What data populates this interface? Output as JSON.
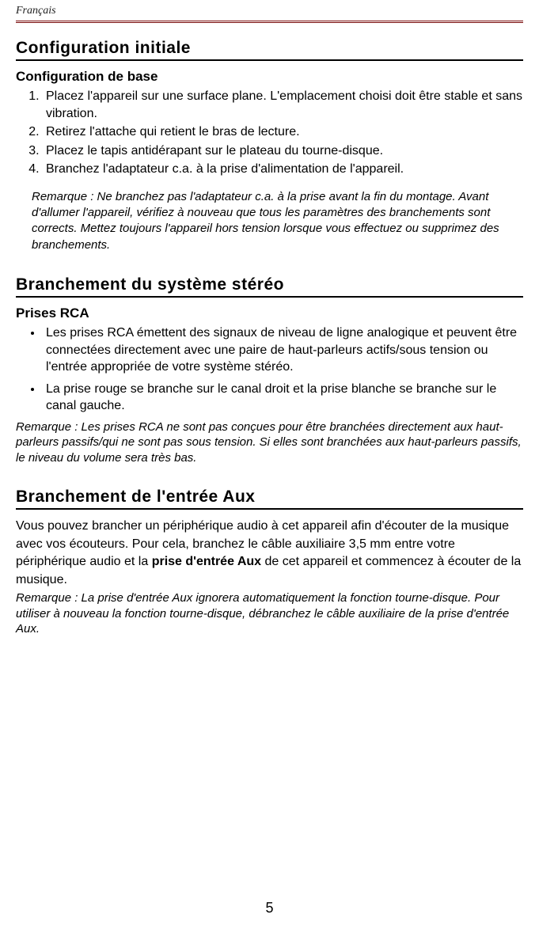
{
  "header": {
    "language": "Français"
  },
  "section1": {
    "title": "Configuration initiale",
    "subhead": "Configuration de base",
    "steps": [
      "Placez l'appareil sur une surface plane. L'emplacement choisi doit être stable et sans vibration.",
      "Retirez l'attache qui retient le bras de lecture.",
      "Placez le tapis antidérapant sur le plateau du tourne-disque.",
      "Branchez l'adaptateur c.a. à la prise d'alimentation de l'appareil."
    ],
    "note": "Remarque : Ne branchez pas l'adaptateur c.a. à la prise avant la fin du montage. Avant d'allumer l'appareil, vérifiez à nouveau que tous les paramètres des branchements sont corrects. Mettez toujours l'appareil hors tension lorsque vous effectuez ou supprimez des branchements."
  },
  "section2": {
    "title": "Branchement du système stéréo",
    "subhead": "Prises RCA",
    "bullets": [
      "Les prises RCA émettent des signaux de niveau de ligne analogique et peuvent être connectées directement avec une paire de haut-parleurs actifs/sous tension ou l'entrée appropriée de votre système stéréo.",
      "La prise rouge se branche sur le canal droit et la prise blanche se branche sur le canal gauche."
    ],
    "note": "Remarque : Les prises RCA ne sont pas conçues pour être branchées directement aux haut-parleurs passifs/qui ne sont pas sous tension. Si elles sont branchées aux haut-parleurs passifs, le niveau du volume sera très bas."
  },
  "section3": {
    "title": "Branchement de l'entrée Aux",
    "para_before": "Vous pouvez brancher un périphérique audio à cet appareil afin d'écouter de la musique avec vos écouteurs. Pour cela, branchez le câble auxiliaire 3,5 mm entre votre périphérique audio et la ",
    "para_strong": "prise d'entrée Aux",
    "para_after": " de cet appareil et commencez à écouter de la musique.",
    "note": "Remarque : La prise d'entrée Aux ignorera automatiquement la fonction tourne-disque. Pour utiliser à nouveau la fonction tourne-disque, débranchez le câble auxiliaire de la prise d'entrée Aux."
  },
  "page_number": "5"
}
